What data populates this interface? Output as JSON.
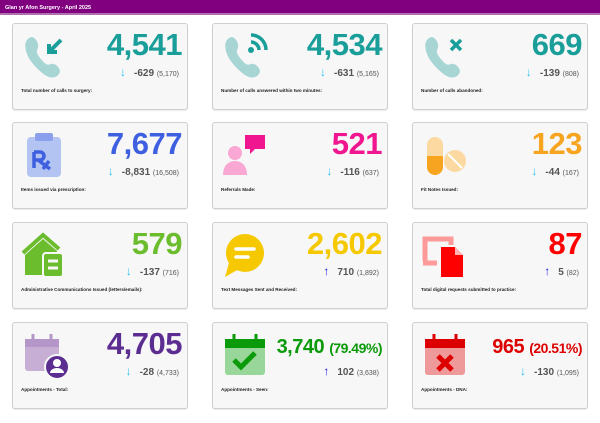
{
  "header": {
    "title": "Glan yr Afon Surgery - April 2025"
  },
  "colors": {
    "header": "#800080",
    "down_arrow": "#29c0f0",
    "up_arrow": "#1a1ae0"
  },
  "cards": [
    {
      "icon": "phone-incoming-icon",
      "value": "4,541",
      "pct": "",
      "delta": "-629",
      "prev": "(5,170)",
      "direction": "down",
      "label": "Total number of calls to surgery:",
      "color": "#1a9e9a"
    },
    {
      "icon": "phone-answered-icon",
      "value": "4,534",
      "pct": "",
      "delta": "-631",
      "prev": "(5,165)",
      "direction": "down",
      "label": "Number of calls answered within two minutes:",
      "color": "#1a9e9a"
    },
    {
      "icon": "phone-abandoned-icon",
      "value": "669",
      "pct": "",
      "delta": "-139",
      "prev": "(808)",
      "direction": "down",
      "label": "Number of calls abandoned:",
      "color": "#1a9e9a"
    },
    {
      "icon": "prescription-icon",
      "value": "7,677",
      "pct": "",
      "delta": "-8,831",
      "prev": "(16,508)",
      "direction": "down",
      "label": "Items issued via prescription:",
      "color": "#3d5fe0"
    },
    {
      "icon": "referral-chat-icon",
      "value": "521",
      "pct": "",
      "delta": "-116",
      "prev": "(637)",
      "direction": "down",
      "label": "Referrals Made:",
      "color": "#f0168f"
    },
    {
      "icon": "pills-icon",
      "value": "123",
      "pct": "",
      "delta": "-44",
      "prev": "(167)",
      "direction": "down",
      "label": "Fit Notes Issued:",
      "color": "#f7a520"
    },
    {
      "icon": "house-letter-icon",
      "value": "579",
      "pct": "",
      "delta": "-137",
      "prev": "(716)",
      "direction": "down",
      "label": "Administrative Communications Issued (letters/emails):",
      "color": "#6cbd2e"
    },
    {
      "icon": "speech-bubble-icon",
      "value": "2,602",
      "pct": "",
      "delta": "710",
      "prev": "(1,892)",
      "direction": "up",
      "label": "Text Messages Sent and Received:",
      "color": "#f5c800"
    },
    {
      "icon": "digital-request-icon",
      "value": "87",
      "pct": "",
      "delta": "5",
      "prev": "(82)",
      "direction": "up",
      "label": "Total digital requests submitted to practice:",
      "color": "#ff0000"
    },
    {
      "icon": "calendar-person-icon",
      "value": "4,705",
      "pct": "",
      "delta": "-28",
      "prev": "(4,733)",
      "direction": "down",
      "label": "Appointments - Total:",
      "color": "#5c2d91"
    },
    {
      "icon": "calendar-check-icon",
      "value": "3,740",
      "pct": "(79.49%)",
      "delta": "102",
      "prev": "(3,638)",
      "direction": "up",
      "label": "Appointments - Seen:",
      "color": "#0a9a0a"
    },
    {
      "icon": "calendar-x-icon",
      "value": "965",
      "pct": "(20.51%)",
      "delta": "-130",
      "prev": "(1,095)",
      "direction": "down",
      "label": "Appointments - DNA:",
      "color": "#dd0000"
    }
  ]
}
